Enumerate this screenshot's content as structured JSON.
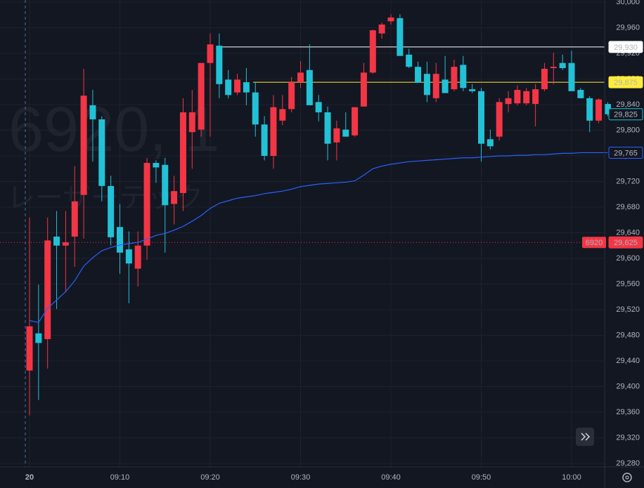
{
  "chart_data": {
    "type": "candlestick",
    "watermark": {
      "symbol": "6920, 1",
      "name": "レーザーテック"
    },
    "categories": [
      "20",
      null,
      null,
      null,
      null,
      null,
      null,
      null,
      null,
      null,
      "09:10",
      null,
      null,
      null,
      null,
      null,
      null,
      null,
      null,
      null,
      "09:20",
      null,
      null,
      null,
      null,
      null,
      null,
      null,
      null,
      null,
      "09:30",
      null,
      null,
      null,
      null,
      null,
      null,
      null,
      null,
      null,
      "09:40",
      null,
      null,
      null,
      null,
      null,
      null,
      null,
      null,
      null,
      "09:50",
      null,
      null,
      null,
      null,
      null,
      null,
      null,
      null,
      null,
      "10:00",
      null,
      null,
      null,
      null
    ],
    "open": [
      29425,
      29483,
      29474,
      29634,
      29620,
      29634,
      29699,
      29839,
      29817,
      29713,
      29649,
      29614,
      29584,
      29620,
      29749,
      29746,
      29685,
      29702,
      29797,
      29801,
      29905,
      29932,
      29879,
      29859,
      29875,
      29859,
      29809,
      29760,
      29815,
      29833,
      29875,
      29894,
      29844,
      29828,
      29781,
      29801,
      29792,
      29837,
      29890,
      29951,
      29970,
      29975,
      29918,
      29899,
      29888,
      29850,
      29879,
      29864,
      29902,
      29864,
      29861,
      29786,
      29790,
      29841,
      29842,
      29842,
      29841,
      29864,
      29897,
      29905,
      29905,
      29863,
      29850,
      29815,
      29841
    ],
    "high": [
      29664,
      29559,
      29664,
      29674,
      29674,
      29744,
      29896,
      29863,
      29822,
      29729,
      29685,
      29642,
      29642,
      29757,
      29753,
      29757,
      29729,
      29850,
      29863,
      29905,
      29951,
      29951,
      29894,
      29888,
      29897,
      29875,
      29822,
      29855,
      29855,
      29883,
      29908,
      29934,
      29855,
      29837,
      29815,
      29828,
      29836,
      29905,
      29957,
      29968,
      29981,
      29981,
      29927,
      29907,
      29907,
      29905,
      29916,
      29910,
      29916,
      29872,
      29866,
      29801,
      29850,
      29861,
      29870,
      29866,
      29872,
      29905,
      29921,
      29918,
      29924,
      29866,
      29853,
      29850,
      29844
    ],
    "low": [
      29355,
      29379,
      29428,
      29521,
      29548,
      29587,
      29631,
      29751,
      29689,
      29620,
      29576,
      29530,
      29556,
      29598,
      29718,
      29609,
      29653,
      29674,
      29740,
      29790,
      29790,
      29850,
      29850,
      29855,
      29839,
      29790,
      29753,
      29740,
      29808,
      29828,
      29866,
      29839,
      29814,
      29753,
      29753,
      29790,
      29790,
      29837,
      29888,
      29943,
      29965,
      29916,
      29897,
      29874,
      29844,
      29844,
      29858,
      29861,
      29861,
      29858,
      29751,
      29770,
      29784,
      29828,
      29839,
      29839,
      29806,
      29861,
      29872,
      29894,
      29861,
      29850,
      29797,
      29811,
      29822
    ],
    "close": [
      29494,
      29468,
      29628,
      29620,
      29625,
      29689,
      29854,
      29817,
      29713,
      29633,
      29609,
      29592,
      29620,
      29749,
      29742,
      29683,
      29705,
      29828,
      29828,
      29905,
      29934,
      29872,
      29855,
      29879,
      29859,
      29809,
      29760,
      29836,
      29833,
      29875,
      29890,
      29839,
      29828,
      29779,
      29803,
      29790,
      29836,
      29890,
      29956,
      29965,
      29976,
      29916,
      29899,
      29874,
      29855,
      29888,
      29858,
      29899,
      29866,
      29861,
      29779,
      29775,
      29844,
      29850,
      29863,
      29861,
      29864,
      29896,
      29899,
      29897,
      29861,
      29850,
      29815,
      29848,
      29825
    ],
    "up_color": "#f23645",
    "down_color": "#22c1d6",
    "line": {
      "color": "#2962ff",
      "values": [
        29503,
        29500,
        29522,
        29535,
        29548,
        29565,
        29588,
        29601,
        29612,
        29617,
        29621,
        29623,
        29625,
        29630,
        29636,
        29639,
        29644,
        29650,
        29658,
        29667,
        29678,
        29686,
        29690,
        29694,
        29696,
        29698,
        29701,
        29703,
        29705,
        29708,
        29712,
        29714,
        29716,
        29717,
        29718,
        29719,
        29721,
        29730,
        29740,
        29744,
        29747,
        29749,
        29751,
        29752,
        29753,
        29754,
        29755,
        29756,
        29757,
        29757,
        29758,
        29759,
        29760,
        29760,
        29761,
        29761,
        29762,
        29762,
        29763,
        29764,
        29764,
        29765,
        29765,
        29765,
        29765
      ]
    },
    "price_lines": [
      {
        "value": 29930,
        "label": "29,930",
        "color": "#ffffff",
        "box": "filled",
        "text_color": "#131722",
        "style": "solid"
      },
      {
        "value": 29875,
        "label": "29,875",
        "color": "#ffeb3b",
        "box": "filled",
        "text_color": "#131722",
        "style": "solid"
      },
      {
        "value": 29825,
        "label": "29,825",
        "color": "#22c1d6",
        "box": "outline",
        "text_color": "#22c1d6",
        "style": "none"
      },
      {
        "value": 29765,
        "label": "29,765",
        "color": "#2962ff",
        "box": "outline",
        "text_color": "#2962ff",
        "style": "none"
      },
      {
        "value": 29625,
        "label": "29,625",
        "color": "#f23645",
        "box": "filled",
        "text_color": "#ffffff",
        "style": "dotted",
        "tag": "6920"
      }
    ],
    "ylim": [
      29280,
      30000
    ],
    "yticks": [
      {
        "value": 29280,
        "label": "29,280"
      },
      {
        "value": 29320,
        "label": "29,320"
      },
      {
        "value": 29360,
        "label": "29,360"
      },
      {
        "value": 29400,
        "label": "29,400"
      },
      {
        "value": 29440,
        "label": "29,440"
      },
      {
        "value": 29480,
        "label": "29,480"
      },
      {
        "value": 29520,
        "label": "29,520"
      },
      {
        "value": 29560,
        "label": "29,560"
      },
      {
        "value": 29600,
        "label": "29,600"
      },
      {
        "value": 29640,
        "label": "29,640"
      },
      {
        "value": 29680,
        "label": "29,680"
      },
      {
        "value": 29720,
        "label": "29,720"
      },
      {
        "value": 29760,
        "label": "29,760"
      },
      {
        "value": 29800,
        "label": "29,800"
      },
      {
        "value": 29840,
        "label": "29,840"
      },
      {
        "value": 29880,
        "label": "29,880"
      },
      {
        "value": 29920,
        "label": "29,920"
      },
      {
        "value": 29960,
        "label": "29,960"
      },
      {
        "value": 30000,
        "label": "30,000"
      }
    ],
    "grid": true
  }
}
